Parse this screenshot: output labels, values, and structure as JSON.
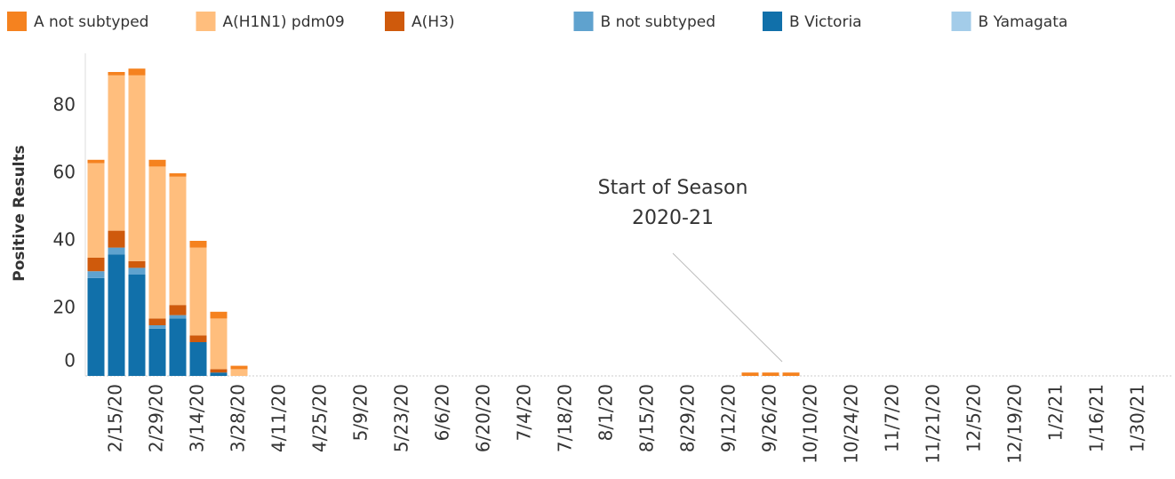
{
  "chart_data": {
    "type": "stacked-bar",
    "y_label": "Positive Results",
    "annotation": [
      "Start of Season",
      "2020-21"
    ],
    "categories": [
      null,
      "2/15/20",
      null,
      "2/29/20",
      null,
      "3/14/20",
      null,
      "3/28/20",
      null,
      "4/11/20",
      null,
      "4/25/20",
      null,
      "5/9/20",
      null,
      "5/23/20",
      null,
      "6/6/20",
      null,
      "6/20/20",
      null,
      "7/4/20",
      null,
      "7/18/20",
      null,
      "8/1/20",
      null,
      "8/15/20",
      null,
      "8/29/20",
      null,
      "9/12/20",
      null,
      "9/26/20",
      null,
      "10/10/20",
      null,
      "10/24/20",
      null,
      "11/7/20",
      null,
      "11/21/20",
      null,
      "12/5/20",
      null,
      "12/19/20",
      null,
      "1/2/21",
      null,
      "1/16/21",
      null,
      "1/30/21",
      null
    ],
    "ylim": [
      0,
      96
    ],
    "yticks": [
      0,
      20,
      40,
      60,
      80
    ],
    "series": [
      {
        "name": "A not subtyped",
        "color": "#f5821f",
        "values": [
          1,
          1,
          2,
          2,
          1,
          2,
          2,
          1,
          0,
          0,
          0,
          0,
          0,
          0,
          0,
          0,
          0,
          0,
          0,
          0,
          0,
          0,
          0,
          0,
          0,
          0,
          0,
          0,
          0,
          0,
          0,
          0,
          1,
          1,
          1,
          0,
          0,
          0,
          0,
          0,
          0,
          0,
          0,
          0,
          0,
          0,
          0,
          0,
          0,
          0,
          0,
          0,
          0
        ]
      },
      {
        "name": "A(H1N1) pdm09",
        "color": "#ffbe7d",
        "values": [
          28,
          46,
          55,
          45,
          38,
          26,
          15,
          2,
          0,
          0,
          0,
          0,
          0,
          0,
          0,
          0,
          0,
          0,
          0,
          0,
          0,
          0,
          0,
          0,
          0,
          0,
          0,
          0,
          0,
          0,
          0,
          0,
          0,
          0,
          0,
          0,
          0,
          0,
          0,
          0,
          0,
          0,
          0,
          0,
          0,
          0,
          0,
          0,
          0,
          0,
          0,
          0,
          0
        ]
      },
      {
        "name": "A(H3)",
        "color": "#cf5a0c",
        "values": [
          4,
          5,
          2,
          2,
          3,
          2,
          1,
          0,
          0,
          0,
          0,
          0,
          0,
          0,
          0,
          0,
          0,
          0,
          0,
          0,
          0,
          0,
          0,
          0,
          0,
          0,
          0,
          0,
          0,
          0,
          0,
          0,
          0,
          0,
          0,
          0,
          0,
          0,
          0,
          0,
          0,
          0,
          0,
          0,
          0,
          0,
          0,
          0,
          0,
          0,
          0,
          0,
          0
        ]
      },
      {
        "name": "B not subtyped",
        "color": "#5fa2ce",
        "values": [
          2,
          2,
          2,
          1,
          1,
          0,
          0,
          0,
          0,
          0,
          0,
          0,
          0,
          0,
          0,
          0,
          0,
          0,
          0,
          0,
          0,
          0,
          0,
          0,
          0,
          0,
          0,
          0,
          0,
          0,
          0,
          0,
          0,
          0,
          0,
          0,
          0,
          0,
          0,
          0,
          0,
          0,
          0,
          0,
          0,
          0,
          0,
          0,
          0,
          0,
          0,
          0,
          0
        ]
      },
      {
        "name": "B Victoria",
        "color": "#1170aa",
        "values": [
          29,
          36,
          30,
          14,
          17,
          10,
          1,
          0,
          0,
          0,
          0,
          0,
          0,
          0,
          0,
          0,
          0,
          0,
          0,
          0,
          0,
          0,
          0,
          0,
          0,
          0,
          0,
          0,
          0,
          0,
          0,
          0,
          0,
          0,
          0,
          0,
          0,
          0,
          0,
          0,
          0,
          0,
          0,
          0,
          0,
          0,
          0,
          0,
          0,
          0,
          0,
          0,
          0
        ]
      },
      {
        "name": "B Yamagata",
        "color": "#a3cce9",
        "values": [
          0,
          0,
          0,
          0,
          0,
          0,
          0,
          0,
          0,
          0,
          0,
          0,
          0,
          0,
          0,
          0,
          0,
          0,
          0,
          0,
          0,
          0,
          0,
          0,
          0,
          0,
          0,
          0,
          0,
          0,
          0,
          0,
          0,
          0,
          0,
          0,
          0,
          0,
          0,
          0,
          0,
          0,
          0,
          0,
          0,
          0,
          0,
          0,
          0,
          0,
          0,
          0,
          0
        ]
      }
    ]
  }
}
